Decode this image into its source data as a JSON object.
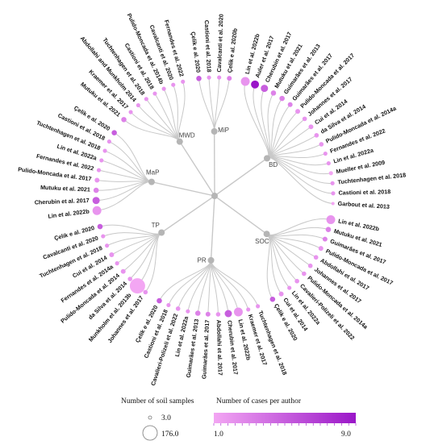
{
  "legend": {
    "size_title": "Number of soil samples",
    "size_min_label": "3.0",
    "size_max_label": "176.0",
    "color_title": "Number of cases per author",
    "color_min_label": "1.0",
    "color_max_label": "9.0",
    "color_low": "#f3a6f3",
    "color_high": "#9a16c8"
  },
  "colors": {
    "link": "#c8c8c8",
    "node": "#b5b5b5",
    "leaf_base": "#e56ae5"
  },
  "groups": [
    {
      "label": "BD",
      "leaves": [
        {
          "label": "Lin et al. 2022b",
          "samples": 40,
          "cases": 2
        },
        {
          "label": "Auler et al. 2017",
          "samples": 30,
          "cases": 9
        },
        {
          "label": "Cherubin et al. 2017",
          "samples": 22,
          "cases": 5
        },
        {
          "label": "Mutuku et al. 2021",
          "samples": 8,
          "cases": 3
        },
        {
          "label": "Guimarães et al. 2013",
          "samples": 8,
          "cases": 3
        },
        {
          "label": "Guimarães et al. 2017",
          "samples": 6,
          "cases": 3
        },
        {
          "label": "Pulido-Moncada et al. 2017",
          "samples": 6,
          "cases": 2
        },
        {
          "label": "Johannes et al. 2017",
          "samples": 5,
          "cases": 2
        },
        {
          "label": "Cui et al. 2014",
          "samples": 6,
          "cases": 2
        },
        {
          "label": "da Silva et al. 2014",
          "samples": 5,
          "cases": 2
        },
        {
          "label": "Pulido-Moncada et al. 2014a",
          "samples": 5,
          "cases": 2
        },
        {
          "label": "Fernandes et al. 2022",
          "samples": 4,
          "cases": 2
        },
        {
          "label": "Lin et al. 2022a",
          "samples": 4,
          "cases": 2
        },
        {
          "label": "Mueller et al. 2009",
          "samples": 4,
          "cases": 1
        },
        {
          "label": "Tuchtenhagen et al. 2018",
          "samples": 4,
          "cases": 2
        },
        {
          "label": "Castioni et al. 2018",
          "samples": 4,
          "cases": 2
        },
        {
          "label": "Garbout et al. 2013",
          "samples": 3,
          "cases": 1
        }
      ]
    },
    {
      "label": "SOC",
      "leaves": [
        {
          "label": "Lin et al. 2022b",
          "samples": 40,
          "cases": 2
        },
        {
          "label": "Mutuku et al. 2021",
          "samples": 8,
          "cases": 3
        },
        {
          "label": "Guimarães et al. 2017",
          "samples": 6,
          "cases": 3
        },
        {
          "label": "Pulido-Moncada et al. 2017",
          "samples": 6,
          "cases": 2
        },
        {
          "label": "Abdollahi et al. 2017",
          "samples": 5,
          "cases": 2
        },
        {
          "label": "Johannes et al. 2017",
          "samples": 5,
          "cases": 2
        },
        {
          "label": "Pulido-Moncada et al. 2014a",
          "samples": 5,
          "cases": 2
        },
        {
          "label": "Cavalieri-Polizeli et al. 2022",
          "samples": 5,
          "cases": 2
        },
        {
          "label": "Lin et al. 2022a",
          "samples": 4,
          "cases": 2
        },
        {
          "label": "Cui et al. 2014",
          "samples": 6,
          "cases": 2
        },
        {
          "label": "Çelik e al. 2020",
          "samples": 8,
          "cases": 5
        }
      ]
    },
    {
      "label": "PR",
      "leaves": [
        {
          "label": "Tuchtenhagen et al. 2018",
          "samples": 4,
          "cases": 2
        },
        {
          "label": "Kraemer et al. 2017",
          "samples": 4,
          "cases": 2
        },
        {
          "label": "Lin et al. 2022b",
          "samples": 40,
          "cases": 2
        },
        {
          "label": "Cherubin et al. 2017",
          "samples": 22,
          "cases": 5
        },
        {
          "label": "Abdollahi et al. 2017",
          "samples": 5,
          "cases": 2
        },
        {
          "label": "Guimarães et al. 2017",
          "samples": 6,
          "cases": 3
        },
        {
          "label": "Guimarães et al. 2013",
          "samples": 8,
          "cases": 3
        },
        {
          "label": "Lin et al. 2022a",
          "samples": 4,
          "cases": 2
        },
        {
          "label": "Cavalieri-Polizeli et al. 2022",
          "samples": 5,
          "cases": 2
        },
        {
          "label": "Castioni et al. 2018",
          "samples": 4,
          "cases": 2
        },
        {
          "label": "Çelik e al. 2020",
          "samples": 8,
          "cases": 5
        }
      ]
    },
    {
      "label": "TP",
      "leaves": [
        {
          "label": "Johannes et al. 2017",
          "samples": 5,
          "cases": 2
        },
        {
          "label": "Munkholm et al. 2013b",
          "samples": 176,
          "cases": 1
        },
        {
          "label": "da Silva et al. 2014",
          "samples": 5,
          "cases": 2
        },
        {
          "label": "Pulido-Moncada et al. 2014",
          "samples": 6,
          "cases": 2
        },
        {
          "label": "Fernandes et al. 2014a",
          "samples": 4,
          "cases": 2
        },
        {
          "label": "Cui et al. 2014",
          "samples": 6,
          "cases": 2
        },
        {
          "label": "Tuchtenhagen et al. 2018",
          "samples": 4,
          "cases": 2
        },
        {
          "label": "Cavalcanti et al. 2020",
          "samples": 4,
          "cases": 2
        },
        {
          "label": "Çelik e al. 2020",
          "samples": 8,
          "cases": 5
        }
      ]
    },
    {
      "label": "MaP",
      "leaves": [
        {
          "label": "Lin et al. 2022b",
          "samples": 40,
          "cases": 2
        },
        {
          "label": "Cherubin et al. 2017",
          "samples": 22,
          "cases": 5
        },
        {
          "label": "Mutuku et al. 2021",
          "samples": 8,
          "cases": 3
        },
        {
          "label": "Pulido-Moncada et al. 2017",
          "samples": 6,
          "cases": 2
        },
        {
          "label": "Fernandes et al. 2022",
          "samples": 4,
          "cases": 2
        },
        {
          "label": "Lin et al. 2022a",
          "samples": 4,
          "cases": 2
        },
        {
          "label": "Tuchtenhagen et al. 2018",
          "samples": 4,
          "cases": 2
        },
        {
          "label": "Castioni et al. 2018",
          "samples": 4,
          "cases": 2
        },
        {
          "label": "Çelik e al. 2020",
          "samples": 8,
          "cases": 5
        }
      ]
    },
    {
      "label": "MWD",
      "leaves": [
        {
          "label": "Mutuku et al. 2021",
          "samples": 8,
          "cases": 3
        },
        {
          "label": "Kraemer et al. 2017",
          "samples": 4,
          "cases": 2
        },
        {
          "label": "Abdollahi and Munkholm 2014",
          "samples": 4,
          "cases": 2
        },
        {
          "label": "Tuchtenhagen et al. 2018",
          "samples": 4,
          "cases": 2
        },
        {
          "label": "Castioni et al. 2018",
          "samples": 4,
          "cases": 2
        },
        {
          "label": "Pulido-Moncada et al. 2014b",
          "samples": 4,
          "cases": 2
        },
        {
          "label": "Cavalcanti et al. 2020",
          "samples": 4,
          "cases": 2
        },
        {
          "label": "Fernandes et al. 2022",
          "samples": 4,
          "cases": 2
        }
      ]
    },
    {
      "label": "MiP",
      "leaves": [
        {
          "label": "Çelik e al. 2020",
          "samples": 8,
          "cases": 5
        },
        {
          "label": "Castioni et al. 2018",
          "samples": 4,
          "cases": 2
        },
        {
          "label": "Cavalcanti et al. 2020",
          "samples": 4,
          "cases": 2
        },
        {
          "label": "Çelik e al. 2020b",
          "samples": 6,
          "cases": 3
        }
      ]
    }
  ]
}
